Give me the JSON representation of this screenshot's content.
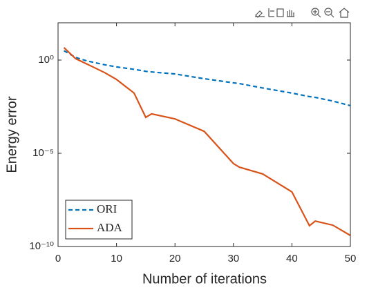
{
  "chart_data": {
    "type": "line",
    "xlabel": "Number of iterations",
    "ylabel": "Energy error",
    "x": [
      1,
      3,
      5,
      8,
      10,
      13,
      15,
      16,
      20,
      25,
      30,
      31,
      35,
      40,
      43,
      44,
      47,
      50
    ],
    "series": [
      {
        "name": "ORI",
        "color": "#0072BD",
        "dash": true,
        "values": [
          3.2,
          1.4,
          0.89,
          0.56,
          0.43,
          0.32,
          0.25,
          0.23,
          0.18,
          0.1,
          0.06,
          0.055,
          0.032,
          0.017,
          0.011,
          0.01,
          0.0063,
          0.0036
        ]
      },
      {
        "name": "ADA",
        "color": "#D95319",
        "dash": false,
        "values": [
          4.7,
          1.2,
          0.6,
          0.21,
          0.091,
          0.017,
          0.00085,
          0.0013,
          0.0007,
          0.00015,
          2.8e-06,
          1.8e-06,
          7.8e-07,
          8.5e-08,
          1.3e-09,
          2.3e-09,
          1.4e-09,
          3.9e-10
        ]
      }
    ],
    "xlim": [
      0,
      50
    ],
    "xticks": [
      0,
      10,
      20,
      30,
      40,
      50
    ],
    "ylim": [
      1e-10,
      100
    ],
    "ylog": true,
    "yticks": [
      {
        "value": 1e-10,
        "label": "10⁻¹⁰"
      },
      {
        "value": 1e-05,
        "label": "10⁻⁵"
      },
      {
        "value": 1,
        "label": "10⁰"
      }
    ],
    "legend": "lower left"
  }
}
